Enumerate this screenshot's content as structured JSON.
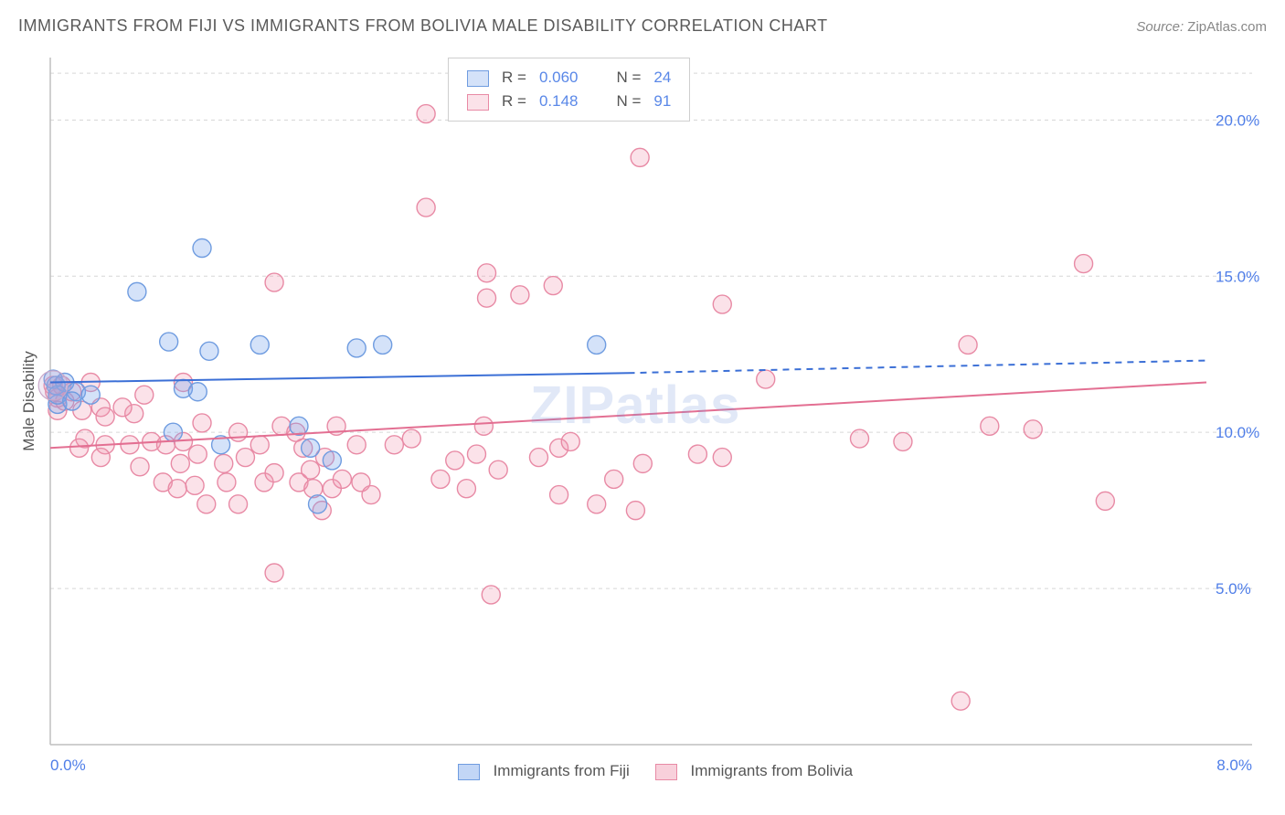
{
  "title": "IMMIGRANTS FROM FIJI VS IMMIGRANTS FROM BOLIVIA MALE DISABILITY CORRELATION CHART",
  "source_label": "Source:",
  "source_value": "ZipAtlas.com",
  "ylabel": "Male Disability",
  "chart": {
    "type": "scatter",
    "xlim": [
      0,
      8
    ],
    "ylim": [
      0,
      22
    ],
    "yticks": [
      5,
      10,
      15,
      20
    ],
    "ytick_labels": [
      "5.0%",
      "10.0%",
      "15.0%",
      "20.0%"
    ],
    "xtick_left": "0.0%",
    "xtick_right": "8.0%",
    "background_color": "#ffffff",
    "grid_color": "#d6d6d6",
    "axis_color": "#bfbfbf",
    "marker_radius": 10,
    "marker_stroke_width": 1.4,
    "trend_line_width": 2,
    "series": [
      {
        "name": "Immigrants from Fiji",
        "fill": "rgba(120,165,235,0.32)",
        "stroke": "#6f9ce0",
        "line_color": "#3b6fd6",
        "R": "0.060",
        "N": "24",
        "trend": {
          "x1": 0,
          "y1": 11.6,
          "x2": 4,
          "y2": 11.9,
          "x2_dash": 8,
          "y2_dash": 12.3
        },
        "points": [
          [
            0.02,
            11.7
          ],
          [
            0.04,
            11.5
          ],
          [
            0.1,
            11.6
          ],
          [
            0.18,
            11.3
          ],
          [
            0.28,
            11.2
          ],
          [
            0.6,
            14.5
          ],
          [
            0.82,
            12.9
          ],
          [
            0.92,
            11.4
          ],
          [
            1.1,
            12.6
          ],
          [
            0.85,
            10.0
          ],
          [
            1.02,
            11.3
          ],
          [
            1.18,
            9.6
          ],
          [
            1.45,
            12.8
          ],
          [
            1.05,
            15.9
          ],
          [
            1.72,
            10.2
          ],
          [
            1.8,
            9.5
          ],
          [
            0.05,
            10.9
          ],
          [
            0.05,
            11.2
          ],
          [
            1.85,
            7.7
          ],
          [
            2.12,
            12.7
          ],
          [
            2.3,
            12.8
          ],
          [
            3.78,
            12.8
          ],
          [
            1.95,
            9.1
          ],
          [
            0.15,
            11.0
          ]
        ]
      },
      {
        "name": "Immigrants from Bolivia",
        "fill": "rgba(240,150,175,0.28)",
        "stroke": "#e88aa5",
        "line_color": "#e36f92",
        "R": "0.148",
        "N": "91",
        "trend": {
          "x1": 0,
          "y1": 9.5,
          "x2": 8,
          "y2": 11.6
        },
        "points": [
          [
            0.02,
            11.5
          ],
          [
            0.03,
            11.3
          ],
          [
            0.05,
            11.1
          ],
          [
            0.05,
            10.7
          ],
          [
            0.08,
            11.5
          ],
          [
            0.1,
            11.0
          ],
          [
            0.15,
            11.3
          ],
          [
            0.22,
            10.7
          ],
          [
            0.28,
            11.6
          ],
          [
            0.24,
            9.8
          ],
          [
            0.35,
            10.8
          ],
          [
            0.38,
            9.6
          ],
          [
            0.7,
            9.7
          ],
          [
            0.62,
            8.9
          ],
          [
            0.58,
            10.6
          ],
          [
            0.8,
            9.6
          ],
          [
            0.78,
            8.4
          ],
          [
            0.9,
            9.0
          ],
          [
            0.92,
            9.7
          ],
          [
            0.88,
            8.2
          ],
          [
            1.0,
            8.3
          ],
          [
            1.02,
            9.3
          ],
          [
            1.08,
            7.7
          ],
          [
            1.2,
            9.0
          ],
          [
            1.22,
            8.4
          ],
          [
            1.35,
            9.2
          ],
          [
            1.3,
            7.7
          ],
          [
            1.45,
            9.6
          ],
          [
            1.48,
            8.4
          ],
          [
            1.55,
            8.7
          ],
          [
            1.55,
            14.8
          ],
          [
            1.6,
            10.2
          ],
          [
            1.72,
            8.4
          ],
          [
            1.7,
            10.0
          ],
          [
            1.8,
            8.8
          ],
          [
            1.82,
            8.2
          ],
          [
            1.88,
            7.5
          ],
          [
            1.9,
            9.2
          ],
          [
            1.95,
            8.2
          ],
          [
            1.98,
            10.2
          ],
          [
            2.02,
            8.5
          ],
          [
            2.12,
            9.6
          ],
          [
            2.15,
            8.4
          ],
          [
            2.22,
            8.0
          ],
          [
            2.6,
            17.2
          ],
          [
            2.6,
            20.2
          ],
          [
            2.7,
            8.5
          ],
          [
            2.8,
            9.1
          ],
          [
            2.88,
            8.2
          ],
          [
            2.95,
            9.3
          ],
          [
            3.0,
            10.2
          ],
          [
            3.02,
            15.1
          ],
          [
            3.02,
            14.3
          ],
          [
            3.1,
            8.8
          ],
          [
            3.25,
            14.4
          ],
          [
            3.38,
            9.2
          ],
          [
            3.48,
            14.7
          ],
          [
            3.52,
            8.0
          ],
          [
            3.52,
            9.5
          ],
          [
            3.6,
            9.7
          ],
          [
            3.05,
            4.8
          ],
          [
            2.38,
            9.6
          ],
          [
            3.78,
            7.7
          ],
          [
            3.9,
            8.5
          ],
          [
            4.08,
            18.8
          ],
          [
            4.05,
            7.5
          ],
          [
            4.48,
            9.3
          ],
          [
            4.65,
            9.2
          ],
          [
            4.65,
            14.1
          ],
          [
            4.95,
            11.7
          ],
          [
            5.6,
            9.8
          ],
          [
            5.9,
            9.7
          ],
          [
            6.35,
            12.8
          ],
          [
            6.5,
            10.2
          ],
          [
            6.8,
            10.1
          ],
          [
            7.15,
            15.4
          ],
          [
            7.3,
            7.8
          ],
          [
            6.3,
            1.4
          ],
          [
            1.55,
            5.5
          ],
          [
            0.65,
            11.2
          ],
          [
            0.38,
            10.5
          ],
          [
            1.05,
            10.3
          ],
          [
            0.55,
            9.6
          ],
          [
            0.92,
            11.6
          ],
          [
            0.35,
            9.2
          ],
          [
            1.3,
            10.0
          ],
          [
            0.5,
            10.8
          ],
          [
            1.75,
            9.5
          ],
          [
            2.5,
            9.8
          ],
          [
            4.1,
            9.0
          ],
          [
            0.2,
            9.5
          ]
        ]
      }
    ]
  },
  "legend_bottom": {
    "items": [
      {
        "label": "Immigrants from Fiji",
        "fill": "rgba(120,165,235,0.45)",
        "stroke": "#6f9ce0"
      },
      {
        "label": "Immigrants from Bolivia",
        "fill": "rgba(240,150,175,0.45)",
        "stroke": "#e88aa5"
      }
    ]
  },
  "watermark": "ZIPatlas"
}
